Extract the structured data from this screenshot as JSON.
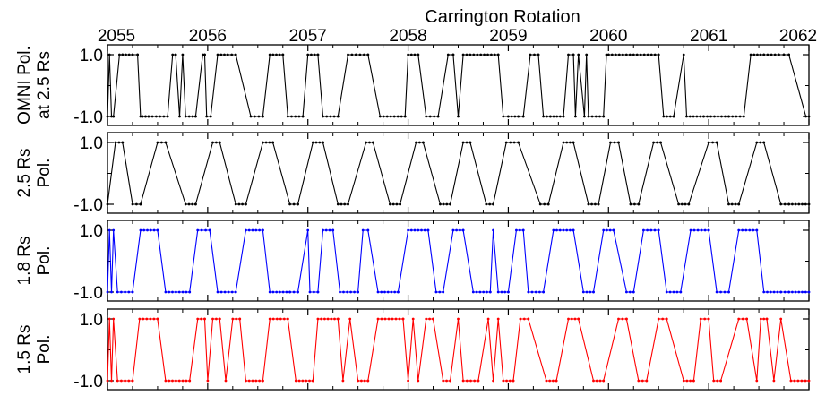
{
  "chart_data": {
    "type": "line",
    "xlabel": "Carrington Rotation",
    "xlim": [
      2055,
      2062
    ],
    "x_ticks": [
      "2055",
      "2056",
      "2057",
      "2058",
      "2059",
      "2060",
      "2061",
      "2062"
    ],
    "y_ticks": [
      "1.0",
      "-1.0"
    ],
    "ylim": [
      -1.2,
      1.2
    ],
    "grid": false,
    "panels": [
      {
        "ylabel": [
          "OMNI Pol.",
          "at 2.5 Rs"
        ],
        "color": "#000000",
        "marker": "small-dot",
        "x": [
          2055.0,
          2055.02,
          2055.04,
          2055.06,
          2055.12,
          2055.15,
          2055.25,
          2055.3,
          2055.33,
          2055.35,
          2055.38,
          2055.41,
          2055.6,
          2055.65,
          2055.68,
          2055.72,
          2055.75,
          2055.78,
          2055.85,
          2055.88,
          2055.95,
          2055.97,
          2055.99,
          2056.03,
          2056.1,
          2056.2,
          2056.28,
          2056.43,
          2056.55,
          2056.62,
          2056.75,
          2056.8,
          2056.95,
          2057.0,
          2057.1,
          2057.15,
          2057.3,
          2057.4,
          2057.48,
          2057.6,
          2057.72,
          2057.97,
          2058.0,
          2058.1,
          2058.18,
          2058.3,
          2058.4,
          2058.45,
          2058.5,
          2058.55,
          2058.9,
          2058.95,
          2059.0,
          2059.1,
          2059.15,
          2059.22,
          2059.3,
          2059.35,
          2059.42,
          2059.55,
          2059.6,
          2059.65,
          2059.67,
          2059.7,
          2059.76,
          2059.78,
          2059.8,
          2059.95,
          2059.98,
          2060.0,
          2060.5,
          2060.55,
          2060.65,
          2060.75,
          2060.78,
          2060.95,
          2061.2,
          2061.35,
          2061.42,
          2061.55,
          2061.7,
          2061.75,
          2061.8,
          2061.97,
          2062.0
        ],
        "y": [
          -1,
          1,
          -1,
          -1,
          1,
          1,
          1,
          1,
          -1,
          -1,
          -1,
          -1,
          -1,
          1,
          1,
          -1,
          1,
          -1,
          -1,
          -1,
          1,
          1,
          -1,
          -1,
          1,
          1,
          1,
          -1,
          -1,
          1,
          1,
          -1,
          -1,
          1,
          1,
          -1,
          -1,
          1,
          1,
          1,
          -1,
          -1,
          1,
          1,
          -1,
          -1,
          1,
          1,
          -1,
          1,
          1,
          -1,
          -1,
          -1,
          -1,
          1,
          1,
          -1,
          -1,
          -1,
          1,
          1,
          -1,
          1,
          -1,
          1,
          -1,
          -1,
          1,
          1,
          1,
          -1,
          -1,
          1,
          -1,
          -1,
          -1,
          -1,
          1,
          1,
          1,
          1,
          1,
          -1,
          -1
        ]
      },
      {
        "ylabel": [
          "2.5 Rs",
          "Pol."
        ],
        "color": "#000000",
        "marker": "small-dot",
        "x": [
          2055.0,
          2055.08,
          2055.15,
          2055.25,
          2055.33,
          2055.5,
          2055.58,
          2055.78,
          2055.88,
          2056.05,
          2056.12,
          2056.28,
          2056.38,
          2056.55,
          2056.65,
          2056.82,
          2056.9,
          2057.05,
          2057.15,
          2057.3,
          2057.4,
          2057.58,
          2057.65,
          2057.82,
          2057.92,
          2058.08,
          2058.15,
          2058.32,
          2058.42,
          2058.55,
          2058.62,
          2058.78,
          2058.85,
          2058.98,
          2059.1,
          2059.32,
          2059.4,
          2059.55,
          2059.65,
          2059.8,
          2059.9,
          2060.02,
          2060.1,
          2060.22,
          2060.3,
          2060.45,
          2060.52,
          2060.7,
          2060.8,
          2061.0,
          2061.08,
          2061.2,
          2061.3,
          2061.48,
          2061.55,
          2061.72,
          2061.8,
          2062.0
        ],
        "y": [
          -1,
          1,
          1,
          -1,
          -1,
          1,
          1,
          -1,
          -1,
          1,
          1,
          -1,
          -1,
          1,
          1,
          -1,
          -1,
          1,
          1,
          -1,
          -1,
          1,
          1,
          -1,
          -1,
          1,
          1,
          -1,
          -1,
          1,
          1,
          -1,
          -1,
          1,
          1,
          -1,
          -1,
          1,
          1,
          -1,
          -1,
          1,
          1,
          -1,
          -1,
          1,
          1,
          -1,
          -1,
          1,
          1,
          -1,
          -1,
          1,
          1,
          -1,
          -1,
          -1
        ]
      },
      {
        "ylabel": [
          "1.8 Rs",
          "Pol."
        ],
        "color": "#0000ff",
        "marker": "small-dot",
        "x": [
          2055.0,
          2055.02,
          2055.04,
          2055.06,
          2055.1,
          2055.25,
          2055.33,
          2055.5,
          2055.58,
          2055.82,
          2055.9,
          2056.02,
          2056.1,
          2056.28,
          2056.38,
          2056.55,
          2056.62,
          2056.82,
          2056.9,
          2057.0,
          2057.02,
          2057.1,
          2057.15,
          2057.25,
          2057.32,
          2057.5,
          2057.55,
          2057.6,
          2057.7,
          2057.9,
          2058.0,
          2058.2,
          2058.28,
          2058.35,
          2058.45,
          2058.55,
          2058.65,
          2058.82,
          2058.85,
          2058.9,
          2059.0,
          2059.08,
          2059.15,
          2059.2,
          2059.35,
          2059.45,
          2059.65,
          2059.75,
          2059.85,
          2059.95,
          2060.05,
          2060.18,
          2060.25,
          2060.35,
          2060.5,
          2060.58,
          2060.72,
          2060.82,
          2061.0,
          2061.08,
          2061.2,
          2061.3,
          2061.48,
          2061.55,
          2061.72,
          2061.8,
          2062.0
        ],
        "y": [
          -1,
          1,
          -1,
          1,
          -1,
          -1,
          1,
          1,
          -1,
          -1,
          1,
          1,
          -1,
          -1,
          1,
          1,
          -1,
          -1,
          -1,
          1,
          -1,
          -1,
          1,
          1,
          -1,
          -1,
          1,
          1,
          -1,
          -1,
          1,
          1,
          -1,
          -1,
          1,
          1,
          -1,
          -1,
          1,
          -1,
          -1,
          1,
          1,
          -1,
          -1,
          1,
          1,
          -1,
          -1,
          1,
          1,
          -1,
          -1,
          1,
          1,
          -1,
          -1,
          1,
          1,
          -1,
          -1,
          1,
          1,
          -1,
          -1,
          -1,
          -1
        ]
      },
      {
        "ylabel": [
          "1.5 Rs",
          "Pol."
        ],
        "color": "#ff0000",
        "marker": "small-dot",
        "x": [
          2055.0,
          2055.02,
          2055.04,
          2055.06,
          2055.1,
          2055.25,
          2055.32,
          2055.5,
          2055.58,
          2055.82,
          2055.9,
          2055.97,
          2056.0,
          2056.05,
          2056.12,
          2056.18,
          2056.25,
          2056.32,
          2056.38,
          2056.55,
          2056.62,
          2056.8,
          2056.88,
          2057.05,
          2057.1,
          2057.3,
          2057.35,
          2057.42,
          2057.5,
          2057.6,
          2057.7,
          2057.95,
          2058.0,
          2058.05,
          2058.1,
          2058.18,
          2058.25,
          2058.35,
          2058.42,
          2058.5,
          2058.55,
          2058.7,
          2058.8,
          2058.85,
          2058.9,
          2058.95,
          2059.05,
          2059.12,
          2059.2,
          2059.38,
          2059.48,
          2059.6,
          2059.7,
          2059.85,
          2059.95,
          2060.1,
          2060.18,
          2060.3,
          2060.38,
          2060.5,
          2060.58,
          2060.75,
          2060.85,
          2060.92,
          2061.0,
          2061.05,
          2061.12,
          2061.3,
          2061.38,
          2061.48,
          2061.52,
          2061.58,
          2061.65,
          2061.72,
          2061.82,
          2062.0
        ],
        "y": [
          -1,
          1,
          -1,
          1,
          -1,
          -1,
          1,
          1,
          -1,
          -1,
          1,
          1,
          -1,
          1,
          1,
          -1,
          1,
          1,
          -1,
          -1,
          1,
          1,
          -1,
          -1,
          1,
          1,
          -1,
          1,
          -1,
          -1,
          1,
          1,
          -1,
          1,
          -1,
          1,
          1,
          -1,
          -1,
          1,
          -1,
          -1,
          1,
          -1,
          1,
          -1,
          -1,
          1,
          1,
          -1,
          -1,
          1,
          1,
          -1,
          -1,
          1,
          1,
          -1,
          -1,
          1,
          1,
          -1,
          -1,
          1,
          1,
          -1,
          -1,
          1,
          1,
          -1,
          1,
          1,
          -1,
          1,
          -1,
          -1
        ]
      }
    ]
  }
}
